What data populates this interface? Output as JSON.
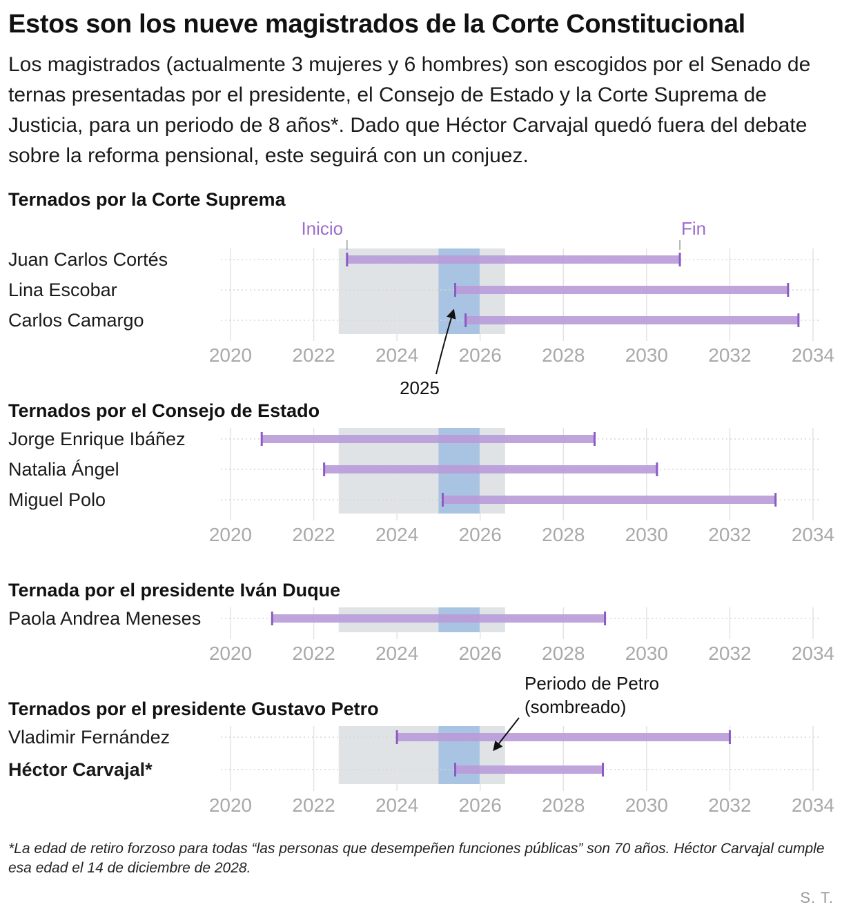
{
  "title": "Estos son los nueve magistrados de la Corte Constitucional",
  "subtitle": "Los magistrados (actualmente 3 mujeres y 6 hombres) son escogidos por el Senado de ternas presentadas por el presidente, el Consejo de Estado y la Corte Suprema de Justicia, para un periodo de 8 años*. Dado que Héctor Carvajal quedó fuera del debate sobre la reforma pensional, este seguirá con un conjuez.",
  "footnote": "*La edad de retiro forzoso para todas “las personas que desempeñen funciones públicas” son 70 años. Héctor Carvajal cumple esa edad el 14 de diciembre de 2028.",
  "credit": "S. T.",
  "colors": {
    "bar": "#b99bd9",
    "bar_end": "#8a5bc4",
    "petro_shade": "#e0e3e5",
    "year_2025_shade": "#a9c4e2",
    "grid": "#e3e3e3",
    "tick": "#a9a9a9",
    "marker_label": "#9b6ccf"
  },
  "chart_data": {
    "type": "timeline",
    "xlim": [
      2020,
      2034
    ],
    "ticks": [
      2020,
      2022,
      2024,
      2026,
      2028,
      2030,
      2032,
      2034
    ],
    "tick_labels": [
      "2020",
      "2022",
      "2024",
      "2026",
      "2028",
      "2030",
      "2032",
      "2034"
    ],
    "petro_period": [
      2022.6,
      2026.6
    ],
    "highlight_year": [
      2025,
      2026
    ],
    "annotations": {
      "inicio": "Inicio",
      "fin": "Fin",
      "year": "2025",
      "petro": "Periodo de Petro\n(sombreado)"
    },
    "groups": [
      {
        "title": "Ternados por la Corte Suprema",
        "rows": [
          {
            "name": "Juan Carlos Cortés",
            "start": 2022.8,
            "end": 2030.8,
            "bold": false
          },
          {
            "name": "Lina Escobar",
            "start": 2025.4,
            "end": 2033.4,
            "bold": false
          },
          {
            "name": "Carlos Camargo",
            "start": 2025.65,
            "end": 2033.65,
            "bold": false
          }
        ]
      },
      {
        "title": "Ternados por el Consejo de Estado",
        "rows": [
          {
            "name": "Jorge Enrique Ibáñez",
            "start": 2020.75,
            "end": 2028.75,
            "bold": false
          },
          {
            "name": "Natalia Ángel",
            "start": 2022.25,
            "end": 2030.25,
            "bold": false
          },
          {
            "name": "Miguel Polo",
            "start": 2025.1,
            "end": 2033.1,
            "bold": false
          }
        ]
      },
      {
        "title": "Ternada por el presidente Iván Duque",
        "rows": [
          {
            "name": "Paola Andrea Meneses",
            "start": 2021.0,
            "end": 2029.0,
            "bold": false
          }
        ]
      },
      {
        "title": "Ternados por el presidente Gustavo Petro",
        "rows": [
          {
            "name": "Vladimir Fernández",
            "start": 2024.0,
            "end": 2032.0,
            "bold": false
          },
          {
            "name": "Héctor Carvajal*",
            "start": 2025.4,
            "end": 2028.95,
            "bold": true
          }
        ]
      }
    ]
  }
}
